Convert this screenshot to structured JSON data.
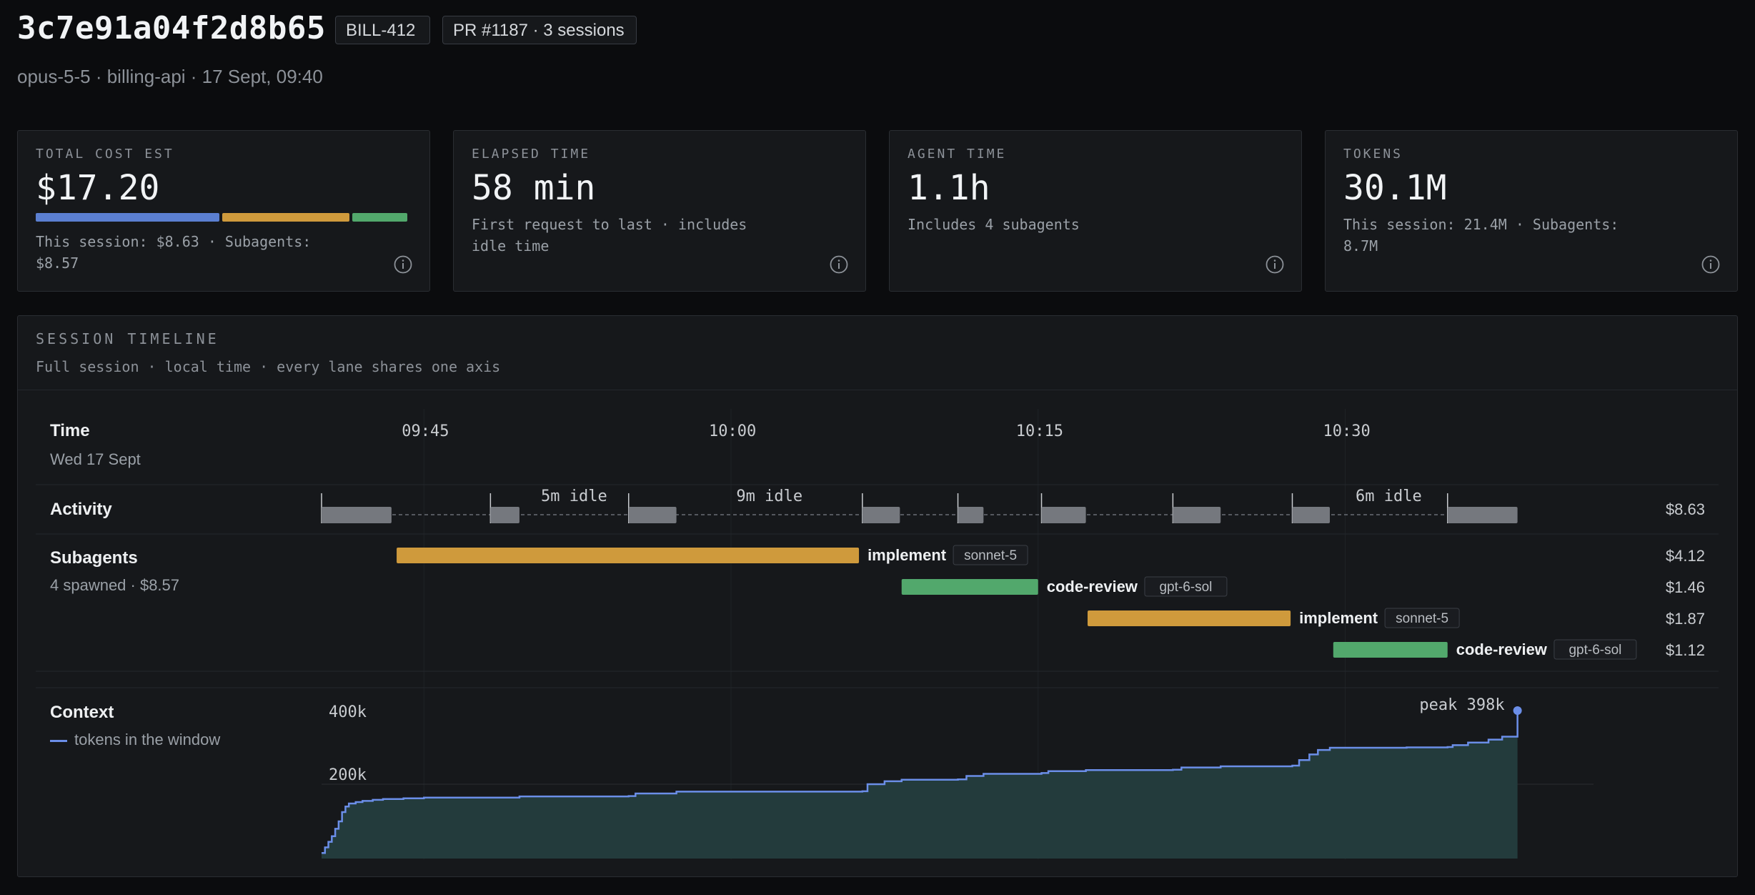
{
  "header": {
    "session_id": "3c7e91a04f2d8b65",
    "ticket_badge": "BILL-412",
    "pr_badge": "PR #1187 · 3 sessions",
    "subtitle": "opus-5-5 · billing-api · 17 Sept, 09:40"
  },
  "colors": {
    "session": "#5b7fd1",
    "implement": "#cf9a3c",
    "code_review": "#52a86c",
    "activity_block": "#75787e",
    "context_line": "#6b8ee8",
    "context_fill": "#233b3c"
  },
  "cards": [
    {
      "label": "TOTAL COST EST",
      "value": "$17.20",
      "note": "This session: $8.63 · Subagents: $8.57",
      "icon": "info-icon",
      "breakdown": [
        {
          "name": "session",
          "value": 8.63
        },
        {
          "name": "implement",
          "value": 5.99
        },
        {
          "name": "code-review",
          "value": 2.58
        }
      ]
    },
    {
      "label": "ELAPSED TIME",
      "value": "58 min",
      "note": "First request to last · includes idle time",
      "icon": "info-icon"
    },
    {
      "label": "AGENT TIME",
      "value": "1.1h",
      "note": "Includes 4 subagents",
      "icon": "info-icon"
    },
    {
      "label": "TOKENS",
      "value": "30.1M",
      "note": "This session: 21.4M · Subagents: 8.7M",
      "icon": "info-icon"
    }
  ],
  "timeline": {
    "title": "SESSION TIMELINE",
    "subtitle": "Full session · local time · every lane shares one axis",
    "time_lane": {
      "title": "Time",
      "date": "Wed 17 Sept"
    },
    "axis": {
      "start": "09:40",
      "end": "10:38",
      "ticks": [
        "09:45",
        "10:00",
        "10:15",
        "10:30"
      ]
    },
    "activity": {
      "title": "Activity",
      "cost": "$8.63",
      "blocks": [
        {
          "start": "09:40:00",
          "end": "09:43:25"
        },
        {
          "start": "09:48:15",
          "end": "09:49:40"
        },
        {
          "start": "09:55:00",
          "end": "09:57:20"
        },
        {
          "start": "10:06:25",
          "end": "10:08:15"
        },
        {
          "start": "10:11:05",
          "end": "10:12:20"
        },
        {
          "start": "10:15:10",
          "end": "10:17:20"
        },
        {
          "start": "10:21:35",
          "end": "10:23:55"
        },
        {
          "start": "10:27:25",
          "end": "10:29:15"
        },
        {
          "start": "10:35:00",
          "end": "10:38:25"
        }
      ],
      "idle_labels": [
        {
          "text": "5m idle",
          "start": "09:49:40",
          "end": "09:55:00"
        },
        {
          "text": "9m idle",
          "start": "09:57:20",
          "end": "10:06:25"
        },
        {
          "text": "6m idle",
          "start": "10:29:15",
          "end": "10:35:00"
        }
      ]
    },
    "subagents": {
      "title": "Subagents",
      "summary": "4 spawned · $8.57",
      "items": [
        {
          "name": "implement",
          "model": "sonnet-5",
          "cost": "$4.12",
          "kind": "implement",
          "start": "09:43:40",
          "end": "10:06:15"
        },
        {
          "name": "code-review",
          "model": "gpt-6-sol",
          "cost": "$1.46",
          "kind": "code_review",
          "start": "10:08:20",
          "end": "10:15:00"
        },
        {
          "name": "implement",
          "model": "sonnet-5",
          "cost": "$1.87",
          "kind": "implement",
          "start": "10:17:25",
          "end": "10:27:20"
        },
        {
          "name": "code-review",
          "model": "gpt-6-sol",
          "cost": "$1.12",
          "kind": "code_review",
          "start": "10:29:25",
          "end": "10:35:00"
        }
      ]
    },
    "context": {
      "title": "Context",
      "legend": "tokens in the window",
      "y_ticks": [
        "400k",
        "200k"
      ],
      "y_range": [
        0,
        400000
      ],
      "peak_label": "peak 398k",
      "series": [
        [
          "09:40:00",
          15000
        ],
        [
          "09:40:10",
          30000
        ],
        [
          "09:40:20",
          45000
        ],
        [
          "09:40:30",
          60000
        ],
        [
          "09:40:40",
          80000
        ],
        [
          "09:40:50",
          100000
        ],
        [
          "09:41:00",
          125000
        ],
        [
          "09:41:10",
          140000
        ],
        [
          "09:41:20",
          148000
        ],
        [
          "09:41:40",
          152000
        ],
        [
          "09:42:00",
          155000
        ],
        [
          "09:42:30",
          158000
        ],
        [
          "09:43:00",
          160000
        ],
        [
          "09:44:00",
          162000
        ],
        [
          "09:45:00",
          164000
        ],
        [
          "09:48:15",
          164000
        ],
        [
          "09:49:40",
          167000
        ],
        [
          "09:55:00",
          168000
        ],
        [
          "09:55:20",
          175000
        ],
        [
          "09:57:20",
          180000
        ],
        [
          "10:06:25",
          181000
        ],
        [
          "10:06:40",
          200000
        ],
        [
          "10:07:30",
          208000
        ],
        [
          "10:08:20",
          212000
        ],
        [
          "10:11:05",
          213000
        ],
        [
          "10:11:30",
          222000
        ],
        [
          "10:12:20",
          228000
        ],
        [
          "10:15:10",
          230000
        ],
        [
          "10:15:30",
          235000
        ],
        [
          "10:17:20",
          238000
        ],
        [
          "10:21:35",
          239000
        ],
        [
          "10:22:00",
          245000
        ],
        [
          "10:23:55",
          248000
        ],
        [
          "10:27:25",
          250000
        ],
        [
          "10:27:45",
          265000
        ],
        [
          "10:28:15",
          280000
        ],
        [
          "10:28:40",
          292000
        ],
        [
          "10:29:15",
          298000
        ],
        [
          "10:33:00",
          299000
        ],
        [
          "10:35:00",
          300000
        ],
        [
          "10:35:15",
          305000
        ],
        [
          "10:36:00",
          312000
        ],
        [
          "10:37:00",
          320000
        ],
        [
          "10:37:40",
          328000
        ],
        [
          "10:38:25",
          398000
        ]
      ]
    }
  }
}
